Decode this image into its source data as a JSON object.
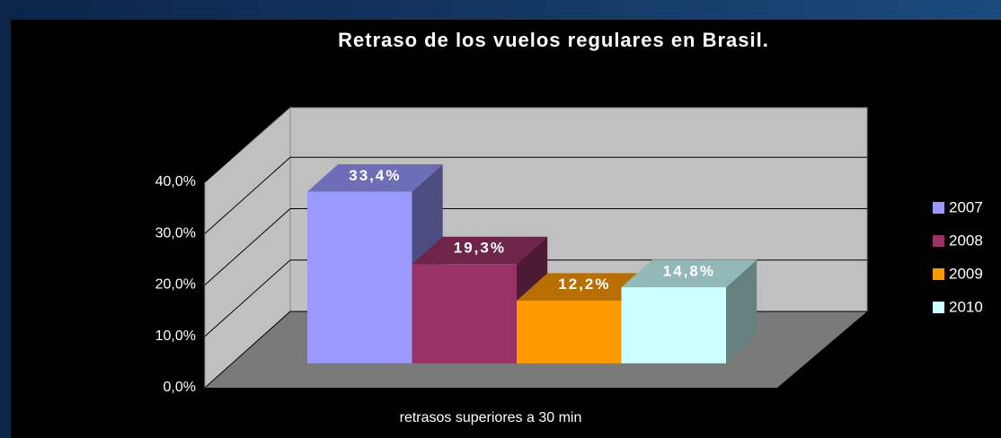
{
  "chart_data": {
    "type": "bar3d",
    "title": "Retraso de los vuelos regulares en Brasil.",
    "categories": [
      "retrasos superiores a 30 min"
    ],
    "series": [
      {
        "name": "2007",
        "color": "#9999ff",
        "values": [
          33.4
        ],
        "value_labels": [
          "33,4%"
        ]
      },
      {
        "name": "2008",
        "color": "#993366",
        "values": [
          19.3
        ],
        "value_labels": [
          "19,3%"
        ]
      },
      {
        "name": "2009",
        "color": "#ff9900",
        "values": [
          12.2
        ],
        "value_labels": [
          "12,2%"
        ]
      },
      {
        "name": "2010",
        "color": "#ccffff",
        "values": [
          14.8
        ],
        "value_labels": [
          "14,8%"
        ]
      }
    ],
    "ylim": [
      0,
      40
    ],
    "yticks": [
      {
        "value": 0,
        "label": "0,0%"
      },
      {
        "value": 10,
        "label": "10,0%"
      },
      {
        "value": 20,
        "label": "20,0%"
      },
      {
        "value": 30,
        "label": "30,0%"
      },
      {
        "value": 40,
        "label": "40,0%"
      }
    ],
    "grid": true,
    "legend": "right"
  }
}
